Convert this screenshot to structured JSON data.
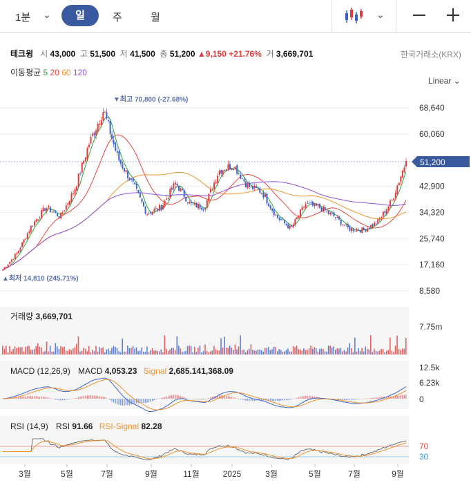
{
  "toolbar": {
    "period": "1분",
    "tabs": [
      "일",
      "주",
      "월"
    ],
    "active_tab": "일"
  },
  "stock": {
    "name": "테크윙",
    "open_label": "시",
    "open": "43,000",
    "high_label": "고",
    "high": "51,500",
    "low_label": "저",
    "low": "41,500",
    "close_label": "종",
    "close": "51,200",
    "change": "9,150",
    "change_pct": "+21.76%",
    "volume_label": "거",
    "volume": "3,669,701",
    "exchange": "한국거래소(KRX)"
  },
  "moving_average": {
    "label": "이동평균",
    "periods": [
      {
        "value": "5",
        "color": "#2e9e3e"
      },
      {
        "value": "20",
        "color": "#e8463c"
      },
      {
        "value": "60",
        "color": "#f0922c"
      },
      {
        "value": "120",
        "color": "#8a4fd8"
      }
    ]
  },
  "scale": "Linear",
  "price_chart": {
    "y_ticks": [
      "68,640",
      "60,060",
      "42,900",
      "34,320",
      "25,740",
      "17,160",
      "8,580"
    ],
    "current_price": "51,200",
    "high_annotation": "▼최고 70,800 (-27.68%)",
    "low_annotation": "▲최저 14,810 (245.71%)"
  },
  "volume_panel": {
    "label": "거래량",
    "value": "3,669,701",
    "tick": "7.75m"
  },
  "macd_panel": {
    "label": "MACD (12,26,9)",
    "macd_label": "MACD",
    "macd_value": "4,053.23",
    "signal_label": "Signal",
    "signal_value": "2,685.141,368.09",
    "ticks": [
      "12.5k",
      "6.23k",
      "0"
    ]
  },
  "rsi_panel": {
    "label": "RSI (14,9)",
    "rsi_label": "RSI",
    "rsi_value": "91.66",
    "signal_label": "RSI-Signal",
    "signal_value": "82.28",
    "ticks": [
      "70",
      "30"
    ]
  },
  "x_axis": [
    "3월",
    "5월",
    "7월",
    "9월",
    "11월",
    "2025",
    "3월",
    "5월",
    "7월",
    "9월"
  ],
  "colors": {
    "up": "#e03b3b",
    "down": "#3a62c8",
    "accent": "#3a5aa0",
    "ma5": "#2e9e3e",
    "ma20": "#e8463c",
    "ma60": "#f0922c",
    "ma120": "#8a4fd8",
    "signal": "#f0922c"
  },
  "chart_data": {
    "type": "line",
    "title": "테크윙",
    "x_axis_labels": [
      "3월",
      "5월",
      "7월",
      "9월",
      "11월",
      "2025",
      "3월",
      "5월",
      "7월",
      "9월"
    ],
    "close_series_approx": [
      15500,
      21000,
      30000,
      36000,
      33000,
      42000,
      57000,
      68000,
      52000,
      44000,
      34000,
      36000,
      44000,
      37000,
      36000,
      48000,
      50000,
      43000,
      41000,
      33000,
      29000,
      37000,
      36000,
      33000,
      29000,
      28500,
      31000,
      38000,
      51200
    ],
    "ylim": [
      8580,
      72000
    ],
    "y_ticks": [
      68640,
      60060,
      42900,
      34320,
      25740,
      17160,
      8580
    ],
    "high": 70800,
    "low": 14810,
    "last": 51200
  }
}
